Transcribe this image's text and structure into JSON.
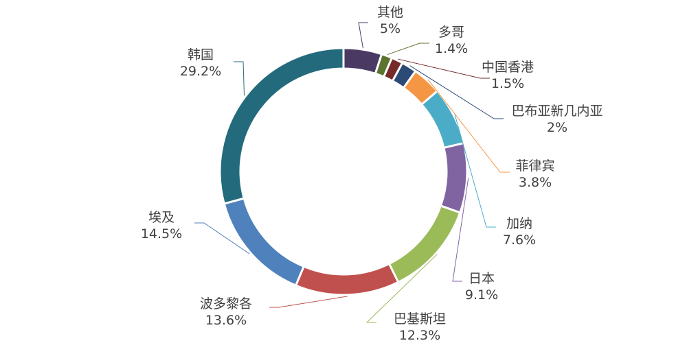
{
  "chart_data": {
    "type": "pie",
    "variant": "donut",
    "title": "",
    "legend": "none",
    "categories": [
      "其他",
      "多哥",
      "中国香港",
      "巴布亚新几内亚",
      "菲律宾",
      "加纳",
      "日本",
      "巴基斯坦",
      "波多黎各",
      "埃及",
      "韩国"
    ],
    "values": [
      5,
      1.4,
      1.5,
      2,
      3.8,
      7.6,
      9.1,
      12.3,
      13.6,
      14.5,
      29.2
    ],
    "value_labels": [
      "5%",
      "1.4%",
      "1.5%",
      "2%",
      "3.8%",
      "7.6%",
      "9.1%",
      "12.3%",
      "13.6%",
      "14.5%",
      "29.2%"
    ],
    "colors": [
      "#4a3a63",
      "#5e7330",
      "#772a2a",
      "#2c4a76",
      "#f59645",
      "#4aacc6",
      "#8064a2",
      "#9bbb59",
      "#c0504d",
      "#4f81bd",
      "#236b7c"
    ]
  }
}
